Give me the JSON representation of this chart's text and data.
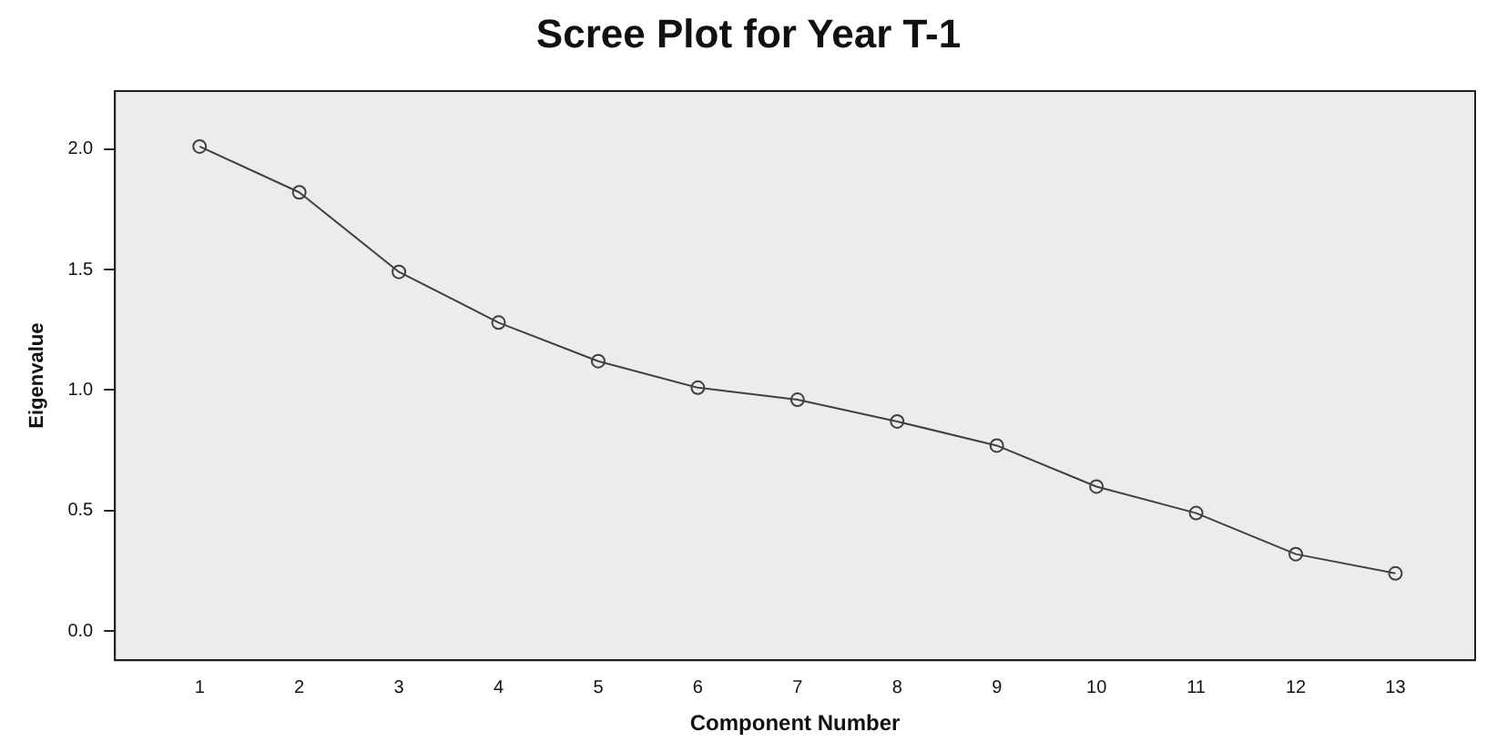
{
  "chart_data": {
    "type": "line",
    "title": "Scree Plot for Year T-1",
    "xlabel": "Component Number",
    "ylabel": "Eigenvalue",
    "x": [
      1,
      2,
      3,
      4,
      5,
      6,
      7,
      8,
      9,
      10,
      11,
      12,
      13
    ],
    "series": [
      {
        "color": "#404040",
        "values": [
          2.01,
          1.82,
          1.49,
          1.28,
          1.12,
          1.01,
          0.96,
          0.87,
          0.77,
          0.6,
          0.49,
          0.32,
          0.24
        ]
      }
    ],
    "xlim": [
      0.15,
      13.8
    ],
    "xticks": [
      1,
      2,
      3,
      4,
      5,
      6,
      7,
      8,
      9,
      10,
      11,
      12,
      13
    ],
    "ylim": [
      -0.12,
      2.24
    ],
    "yticks": [
      {
        "value": 0,
        "label": "0.0"
      },
      0.5,
      {
        "value": 1,
        "label": "1.0"
      },
      1.5,
      {
        "value": 2,
        "label": "2.0"
      }
    ],
    "grid": false,
    "legend": false,
    "marker": "circle",
    "line_style": "solid"
  }
}
